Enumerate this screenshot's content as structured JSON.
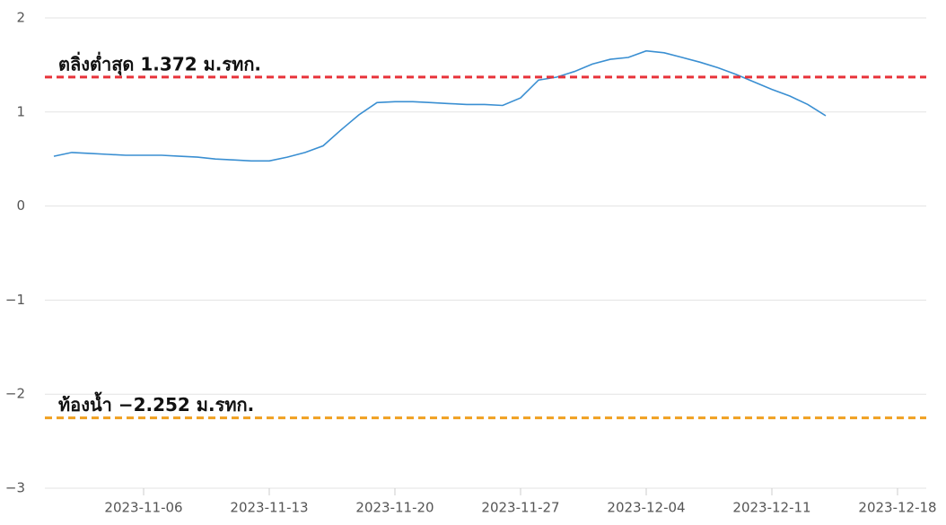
{
  "chart_data": {
    "type": "line",
    "x": [
      "2023-11-01",
      "2023-11-02",
      "2023-11-03",
      "2023-11-04",
      "2023-11-05",
      "2023-11-06",
      "2023-11-07",
      "2023-11-08",
      "2023-11-09",
      "2023-11-10",
      "2023-11-11",
      "2023-11-12",
      "2023-11-13",
      "2023-11-14",
      "2023-11-15",
      "2023-11-16",
      "2023-11-17",
      "2023-11-18",
      "2023-11-19",
      "2023-11-20",
      "2023-11-21",
      "2023-11-22",
      "2023-11-23",
      "2023-11-24",
      "2023-11-25",
      "2023-11-26",
      "2023-11-27",
      "2023-11-28",
      "2023-11-29",
      "2023-11-30",
      "2023-12-01",
      "2023-12-02",
      "2023-12-03",
      "2023-12-04",
      "2023-12-05",
      "2023-12-06",
      "2023-12-07",
      "2023-12-08",
      "2023-12-09",
      "2023-12-10",
      "2023-12-11",
      "2023-12-12",
      "2023-12-13",
      "2023-12-14"
    ],
    "series": [
      {
        "color": "#3a8fd2",
        "values": [
          0.53,
          0.57,
          0.56,
          0.55,
          0.54,
          0.54,
          0.54,
          0.53,
          0.52,
          0.5,
          0.49,
          0.48,
          0.48,
          0.52,
          0.57,
          0.64,
          0.81,
          0.97,
          1.1,
          1.11,
          1.11,
          1.1,
          1.09,
          1.08,
          1.08,
          1.07,
          1.15,
          1.34,
          1.37,
          1.43,
          1.51,
          1.56,
          1.58,
          1.65,
          1.63,
          1.58,
          1.53,
          1.47,
          1.4,
          1.32,
          1.24,
          1.17,
          1.08,
          0.96
        ]
      }
    ],
    "xlim": [
      "2023-10-31",
      "2023-12-20"
    ],
    "xticks": [
      "2023-11-06",
      "2023-11-13",
      "2023-11-20",
      "2023-11-27",
      "2023-12-04",
      "2023-12-11",
      "2023-12-18"
    ],
    "ylim": [
      -3,
      2
    ],
    "yticks": [
      {
        "value": -3,
        "label": "−3"
      },
      {
        "value": -2,
        "label": "−2"
      },
      {
        "value": -1,
        "label": "−1"
      },
      0,
      1,
      2
    ],
    "grid": true,
    "reference_lines": [
      {
        "value": 1.372,
        "label": "ตลิ่งต่ำสุด 1.372 ม.รทก.",
        "color": "#e8333a"
      },
      {
        "value": -2.252,
        "label": "ท้องน้ำ −2.252 ม.รทก.",
        "color": "#f0a020"
      }
    ]
  }
}
